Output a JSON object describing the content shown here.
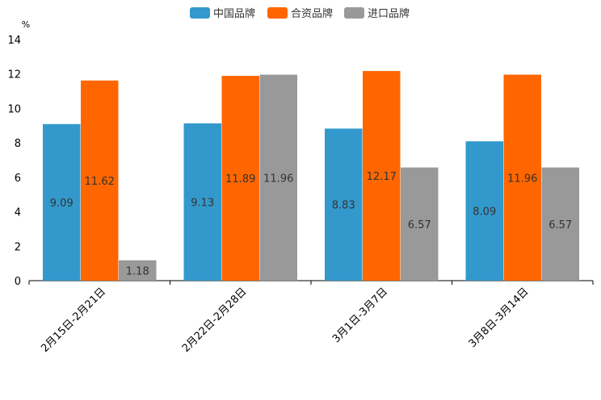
{
  "chart_data": {
    "type": "bar",
    "unit": "%",
    "categories": [
      "2月15日-2月21日",
      "2月22日-2月28日",
      "3月1日-3月7日",
      "3月8日-3月14日"
    ],
    "series": [
      {
        "name": "中国品牌",
        "color": "#3399cc",
        "values": [
          9.09,
          9.13,
          8.83,
          8.09
        ]
      },
      {
        "name": "合资品牌",
        "color": "#ff6600",
        "values": [
          11.62,
          11.89,
          12.17,
          11.96
        ]
      },
      {
        "name": "进口品牌",
        "color": "#999999",
        "values": [
          1.18,
          11.96,
          6.57,
          6.57
        ]
      }
    ],
    "ylim": [
      0,
      14
    ],
    "yticks": [
      "0",
      "2",
      "4",
      "6",
      "8",
      "10",
      "12",
      "14"
    ],
    "legend_position": "top-center"
  }
}
